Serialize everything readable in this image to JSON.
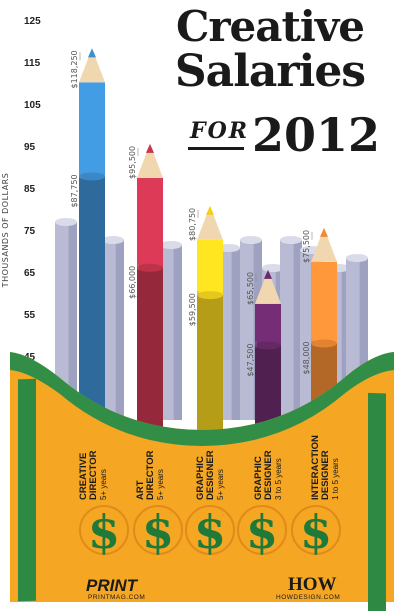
{
  "title": {
    "line1": "Creative",
    "line2": "Salaries",
    "for": "FOR",
    "year": "2012"
  },
  "chart_data": {
    "type": "bar",
    "ylabel": "THOUSANDS OF DOLLARS",
    "ylim": [
      45,
      125
    ],
    "yticks": [
      125,
      115,
      105,
      95,
      85,
      75,
      65,
      55,
      45
    ],
    "categories": [
      {
        "line1": "CREATIVE",
        "line2": "DIRECTOR",
        "years": "5+ years"
      },
      {
        "line1": "ART",
        "line2": "DIRECTOR",
        "years": "5+ years"
      },
      {
        "line1": "GRAPHIC",
        "line2": "DESIGNER",
        "years": "5+ years"
      },
      {
        "line1": "GRAPHIC",
        "line2": "DESIGNER",
        "years": "3 to 5 years"
      },
      {
        "line1": "INTERACTION",
        "line2": "DESIGNER",
        "years": "1 to 5 years"
      }
    ],
    "series": [
      {
        "values": [
          118.25,
          95.5,
          80.75,
          65.5,
          75.5
        ],
        "labels": [
          "$118,250",
          "$95,500",
          "$80,750",
          "$65,500",
          "$75,500"
        ]
      },
      {
        "values": [
          87.75,
          66.0,
          59.5,
          47.5,
          48.0
        ],
        "labels": [
          "$87,750",
          "$66,000",
          "$59,500",
          "$47,500",
          "$48,000"
        ]
      }
    ],
    "colors": [
      "#3d8fd0",
      "#c8354e",
      "#f2d11e",
      "#6a2a6a",
      "#ef8a35"
    ],
    "grid": false
  },
  "footer": {
    "print_logo": "PRINT",
    "print_url": "PRINTMAG.COM",
    "how_logo": "HOW",
    "how_url": "HOWDESIGN.COM"
  }
}
